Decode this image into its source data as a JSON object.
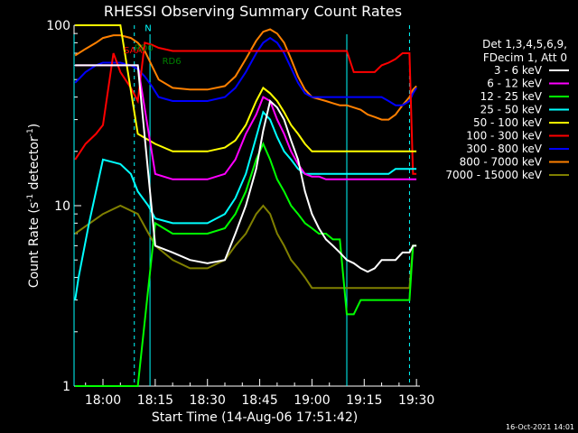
{
  "chart_data": {
    "type": "line",
    "title": "RHESSI Observing Summary Count Rates",
    "xlabel": "Start Time (14-Aug-06 17:51:42)",
    "ylabel_main": "Count Rate (s",
    "ylabel_sup1": "-1",
    "ylabel_mid": " detector",
    "ylabel_sup2": "-1",
    "ylabel_end": ")",
    "yscale": "log",
    "ylim": [
      1,
      100
    ],
    "xlim_minutes_after_1800": [
      -8.3,
      91
    ],
    "x_ticks": [
      "18:00",
      "18:15",
      "18:30",
      "18:45",
      "19:00",
      "19:15",
      "19:30"
    ],
    "x_tick_minutes": [
      0,
      15,
      30,
      45,
      60,
      75,
      90
    ],
    "y_ticks": [
      "1",
      "10",
      "100"
    ],
    "y_tick_values": [
      1,
      10,
      100
    ],
    "legend": {
      "header": [
        "Det 1,3,4,5,6,9,",
        "FDecim 1, Att 0"
      ],
      "position": "right"
    },
    "annotations": [
      {
        "text": "N",
        "x": 12,
        "y": 93,
        "color": "#00ffff"
      },
      {
        "text": "SAA",
        "x": 6,
        "y": 70,
        "color": "#ff0000"
      },
      {
        "text": "RD0",
        "x": 9,
        "y": 72,
        "color": "#008000"
      },
      {
        "text": "RD6",
        "x": 17,
        "y": 61,
        "color": "#008000"
      }
    ],
    "vlines_dashed": [
      9,
      88
    ],
    "vlines_solid": [
      -8.3,
      13.5,
      70
    ],
    "series": [
      {
        "name": "3 - 6 keV",
        "color": "#ffffff",
        "x": [
          -8,
          0,
          5,
          10,
          15,
          20,
          25,
          30,
          35,
          38,
          41,
          44,
          46,
          48,
          50,
          52,
          54,
          56,
          58,
          60,
          62,
          64,
          66,
          68,
          70,
          72,
          74,
          76,
          78,
          80,
          82,
          84,
          86,
          88,
          89,
          90
        ],
        "y": [
          60,
          60,
          60,
          60,
          6,
          5.5,
          5,
          4.8,
          5,
          7,
          10,
          16,
          26,
          38,
          35,
          30,
          23,
          18,
          12,
          9,
          7.5,
          6.5,
          6,
          5.5,
          5,
          4.8,
          4.5,
          4.3,
          4.5,
          5,
          5,
          5,
          5.5,
          5.5,
          6,
          6
        ]
      },
      {
        "name": "6 - 12 keV",
        "color": "#ff00ff",
        "x": [
          -8,
          0,
          5,
          10,
          15,
          20,
          25,
          30,
          35,
          38,
          41,
          44,
          46,
          48,
          50,
          52,
          54,
          56,
          58,
          60,
          62,
          64,
          66,
          68,
          70,
          72,
          74,
          76,
          78,
          80,
          82,
          84,
          86,
          88,
          89,
          90
        ],
        "y": [
          60,
          60,
          60,
          60,
          15,
          14,
          14,
          14,
          15,
          18,
          25,
          32,
          40,
          38,
          30,
          25,
          20,
          17,
          15,
          14.5,
          14.5,
          14,
          14,
          14,
          14,
          14,
          14,
          14,
          14,
          14,
          14,
          14,
          14,
          14,
          14,
          14
        ]
      },
      {
        "name": "12 - 25 keV",
        "color": "#00ff00",
        "x": [
          -8,
          0,
          5,
          10,
          15,
          20,
          25,
          30,
          35,
          38,
          41,
          44,
          46,
          48,
          50,
          52,
          54,
          56,
          58,
          60,
          62,
          64,
          66,
          68,
          70,
          72,
          74,
          76,
          78,
          80,
          82,
          84,
          86,
          88,
          89,
          90
        ],
        "y": [
          1,
          1,
          1,
          1,
          8,
          7,
          7,
          7,
          7.5,
          9,
          12,
          18,
          22,
          18,
          14,
          12,
          10,
          9,
          8,
          7.5,
          7,
          7,
          6.5,
          6.5,
          2.5,
          2.5,
          3,
          3,
          3,
          3,
          3,
          3,
          3,
          3,
          6,
          6
        ]
      },
      {
        "name": "25 - 50 keV",
        "color": "#00ffff",
        "x": [
          -8,
          -7,
          -4,
          0,
          5,
          8,
          10,
          13,
          15,
          20,
          25,
          30,
          35,
          38,
          41,
          44,
          46,
          48,
          50,
          52,
          54,
          56,
          58,
          60,
          62,
          64,
          66,
          68,
          70,
          72,
          74,
          76,
          78,
          80,
          82,
          84,
          86,
          88,
          89,
          90
        ],
        "y": [
          3,
          4,
          8,
          18,
          17,
          15,
          12,
          10,
          8.5,
          8,
          8,
          8,
          9,
          11,
          15,
          24,
          33,
          30,
          24,
          20,
          18,
          16,
          15,
          15,
          15,
          15,
          15,
          15,
          15,
          15,
          15,
          15,
          15,
          15,
          15,
          16,
          16,
          16,
          16,
          16
        ]
      },
      {
        "name": "50 - 100 keV",
        "color": "#ffff00",
        "x": [
          -8,
          0,
          5,
          10,
          15,
          20,
          25,
          30,
          35,
          38,
          41,
          44,
          46,
          48,
          50,
          52,
          54,
          56,
          58,
          60,
          62,
          64,
          66,
          68,
          70,
          72,
          74,
          76,
          78,
          80,
          82,
          84,
          86,
          88,
          89,
          90
        ],
        "y": [
          100,
          100,
          100,
          25,
          22,
          20,
          20,
          20,
          21,
          23,
          28,
          38,
          45,
          42,
          38,
          33,
          28,
          25,
          22,
          20,
          20,
          20,
          20,
          20,
          20,
          20,
          20,
          20,
          20,
          20,
          20,
          20,
          20,
          20,
          20,
          20
        ]
      },
      {
        "name": "100 - 300 keV",
        "color": "#ff0000",
        "x": [
          -8,
          -5,
          -2,
          0,
          3,
          5,
          8,
          10,
          12,
          14,
          16,
          20,
          25,
          30,
          35,
          40,
          44,
          46,
          48,
          50,
          52,
          54,
          56,
          58,
          60,
          62,
          65,
          68,
          70,
          72,
          75,
          78,
          80,
          82,
          84,
          86,
          88,
          89,
          90
        ],
        "y": [
          18,
          22,
          25,
          28,
          70,
          55,
          45,
          38,
          80,
          78,
          75,
          72,
          72,
          72,
          72,
          72,
          72,
          72,
          72,
          72,
          72,
          72,
          72,
          72,
          72,
          72,
          72,
          72,
          72,
          55,
          55,
          55,
          60,
          62,
          65,
          70,
          70,
          15,
          15
        ]
      },
      {
        "name": "300 - 800 keV",
        "color": "#0000ff",
        "x": [
          -8,
          -5,
          -2,
          0,
          3,
          5,
          8,
          10,
          12,
          14,
          16,
          20,
          25,
          30,
          35,
          38,
          41,
          44,
          46,
          48,
          50,
          52,
          54,
          56,
          58,
          60,
          62,
          64,
          66,
          68,
          70,
          72,
          74,
          76,
          78,
          80,
          82,
          84,
          86,
          88,
          89,
          90
        ],
        "y": [
          48,
          55,
          60,
          62,
          62,
          62,
          60,
          57,
          52,
          46,
          40,
          38,
          38,
          38,
          40,
          45,
          55,
          70,
          80,
          85,
          80,
          70,
          58,
          48,
          42,
          40,
          40,
          40,
          40,
          40,
          40,
          40,
          40,
          40,
          40,
          40,
          38,
          36,
          36,
          38,
          42,
          45
        ]
      },
      {
        "name": "800 - 7000 keV",
        "color": "#ff8000",
        "x": [
          -8,
          -5,
          -2,
          0,
          3,
          5,
          8,
          10,
          12,
          14,
          16,
          20,
          25,
          30,
          35,
          38,
          41,
          44,
          46,
          48,
          50,
          52,
          54,
          56,
          58,
          60,
          62,
          64,
          66,
          68,
          70,
          72,
          74,
          76,
          78,
          80,
          82,
          84,
          86,
          88,
          89,
          90
        ],
        "y": [
          68,
          74,
          80,
          85,
          88,
          88,
          85,
          80,
          72,
          60,
          50,
          45,
          44,
          44,
          46,
          52,
          65,
          82,
          92,
          95,
          90,
          80,
          65,
          52,
          44,
          40,
          39,
          38,
          37,
          36,
          36,
          35,
          34,
          32,
          31,
          30,
          30,
          32,
          36,
          40,
          44,
          46
        ]
      },
      {
        "name": "7000 - 15000 keV",
        "color": "#808000",
        "x": [
          -8,
          0,
          5,
          10,
          15,
          20,
          25,
          30,
          35,
          38,
          41,
          44,
          46,
          48,
          50,
          52,
          54,
          56,
          58,
          60,
          62,
          64,
          66,
          68,
          70,
          72,
          74,
          76,
          78,
          80,
          82,
          84,
          86,
          88,
          89,
          90
        ],
        "y": [
          7,
          9,
          10,
          9,
          6,
          5,
          4.5,
          4.5,
          5,
          6,
          7,
          9,
          10,
          9,
          7,
          6,
          5,
          4.5,
          4,
          3.5,
          3.5,
          3.5,
          3.5,
          3.5,
          3.5,
          3.5,
          3.5,
          3.5,
          3.5,
          3.5,
          3.5,
          3.5,
          3.5,
          3.5,
          6,
          6
        ]
      }
    ]
  },
  "footer": {
    "timestamp": "16-Oct-2021 14:01"
  }
}
